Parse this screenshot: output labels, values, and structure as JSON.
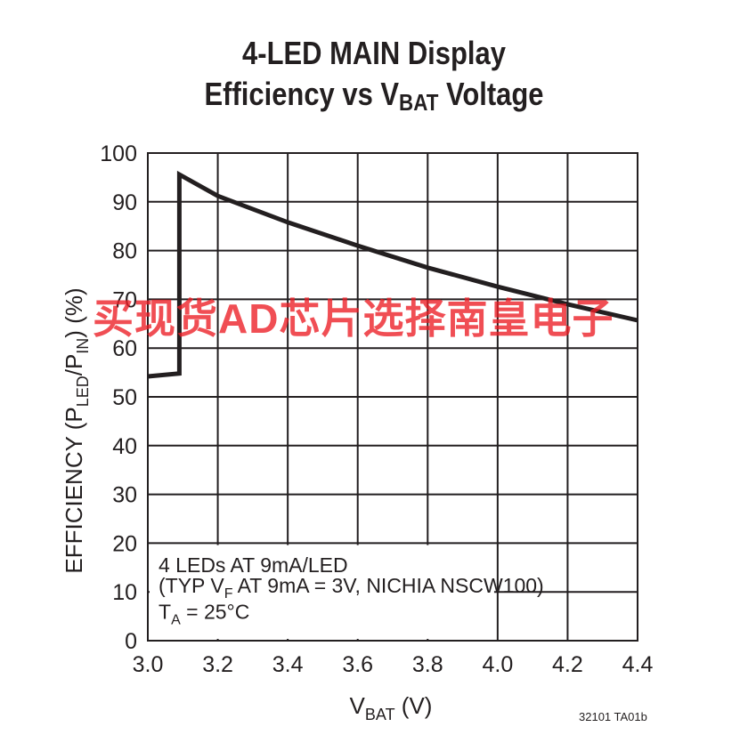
{
  "title": {
    "line1": "4-LED MAIN Display",
    "line2_pre": "Efficiency vs V",
    "line2_sub": "BAT",
    "line2_post": " Voltage"
  },
  "watermark": "买现货AD芯片选择南皇电子",
  "figure_id": "32101 TA01b",
  "chart_data": {
    "type": "line",
    "title": "4-LED MAIN Display Efficiency vs VBAT Voltage",
    "xlabel": {
      "main": "V",
      "sub": "BAT",
      "post": " (V)"
    },
    "ylabel": {
      "pre": "EFFICIENCY (P",
      "sub1": "LED",
      "mid": "/P",
      "sub2": "IN",
      "post": ") (%)"
    },
    "xlim": [
      3.0,
      4.4
    ],
    "ylim": [
      0,
      100
    ],
    "xticks": [
      3.0,
      3.2,
      3.4,
      3.6,
      3.8,
      4.0,
      4.2,
      4.4
    ],
    "xtick_labels": [
      "3.0",
      "3.2",
      "3.4",
      "3.6",
      "3.8",
      "4.0",
      "4.2",
      "4.4"
    ],
    "yticks": [
      0,
      10,
      20,
      30,
      40,
      50,
      60,
      70,
      80,
      90,
      100
    ],
    "ytick_labels": [
      "0",
      "10",
      "20",
      "30",
      "40",
      "50",
      "60",
      "70",
      "80",
      "90",
      "100"
    ],
    "grid": true,
    "series": [
      {
        "x": [
          3.0,
          3.09,
          3.09,
          3.2,
          3.4,
          3.6,
          3.8,
          4.0,
          4.2,
          4.4
        ],
        "y": [
          54.2,
          54.8,
          95.6,
          91.2,
          85.8,
          81.0,
          76.5,
          72.6,
          69.0,
          65.7
        ]
      }
    ],
    "annotation": {
      "line1": "4 LEDs AT 9mA/LED",
      "line2_pre": "(TYP V",
      "line2_sub": "F",
      "line2_post": " AT 9mA = 3V, NICHIA NSCW100)",
      "line3_pre": "T",
      "line3_sub": "A",
      "line3_post": " = 25°C"
    }
  }
}
